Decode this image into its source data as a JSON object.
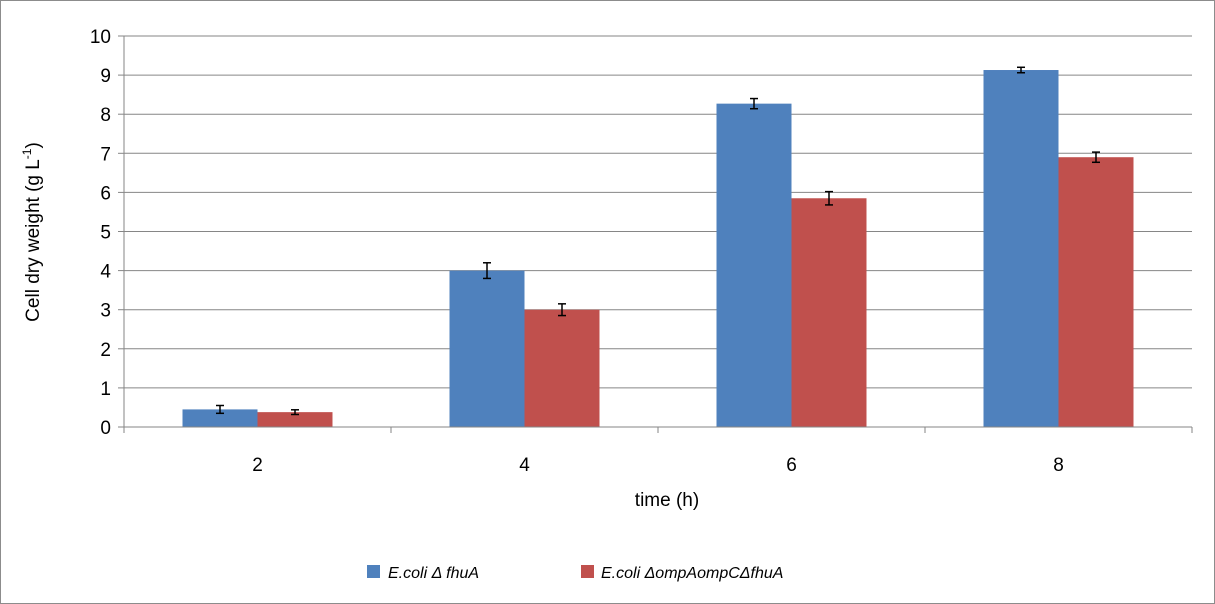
{
  "chart_data": {
    "type": "bar",
    "title": "",
    "xlabel": "time (h)",
    "ylabel": "Cell dry weight (g L",
    "ylabel_superscript": "-1",
    "ylabel_suffix": ")",
    "categories": [
      "2",
      "4",
      "6",
      "8"
    ],
    "ylim": [
      0,
      10
    ],
    "ytick_labels": [
      "0",
      "1",
      "2",
      "3",
      "4",
      "5",
      "6",
      "7",
      "8",
      "9",
      "10"
    ],
    "grid": true,
    "legend_position": "bottom",
    "series": [
      {
        "name": "E.coli Δ fhuA",
        "color": "#4f81bd",
        "values": [
          0.45,
          4.0,
          8.27,
          9.13
        ],
        "errors": [
          0.1,
          0.2,
          0.13,
          0.07
        ]
      },
      {
        "name": "E.coli ΔompAompCΔfhuA",
        "color": "#c0504d",
        "values": [
          0.38,
          3.0,
          5.85,
          6.9
        ],
        "errors": [
          0.06,
          0.15,
          0.17,
          0.13
        ]
      }
    ]
  }
}
